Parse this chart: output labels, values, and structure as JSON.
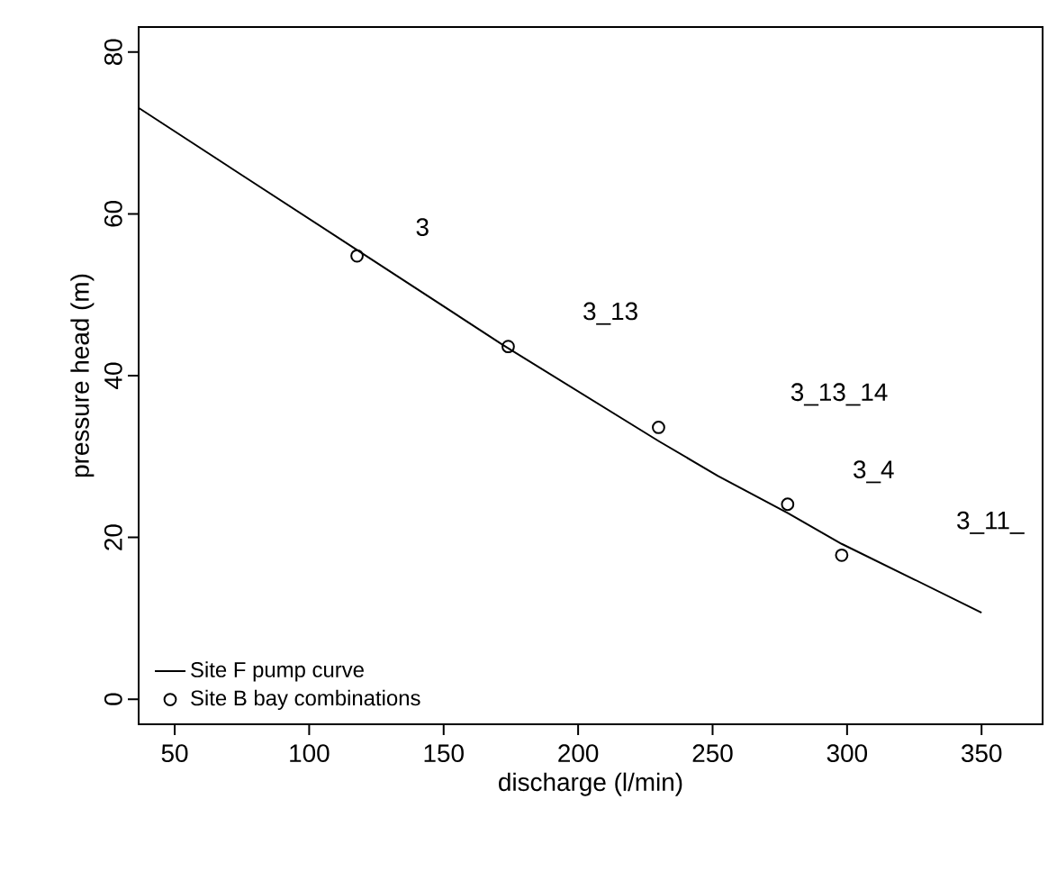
{
  "chart_data": {
    "type": "scatter",
    "xlabel": "discharge (l/min)",
    "ylabel": "pressure head (m)",
    "xlim": [
      36.6,
      372.7
    ],
    "ylim": [
      -3.1,
      83.1
    ],
    "xticks": [
      50,
      100,
      150,
      200,
      250,
      300,
      350
    ],
    "yticks": [
      0,
      20,
      40,
      60,
      80
    ],
    "legend": "bottom left",
    "series": [
      {
        "name": "Site F pump curve",
        "type": "line",
        "marker": "none",
        "color": "#000000",
        "x": [
          36.6,
          74,
          118,
          172,
          230,
          252,
          278,
          298,
          325,
          350
        ],
        "values": [
          73.1,
          65.0,
          55.5,
          43.8,
          31.9,
          27.6,
          23.0,
          19.2,
          14.8,
          10.7
        ]
      },
      {
        "name": "Site B bay combinations",
        "marker": "circle",
        "color": "#000000",
        "x": [
          117.8,
          174,
          229.9,
          277.9,
          298
        ],
        "values": [
          54.8,
          43.6,
          33.6,
          24.1,
          17.8
        ]
      }
    ],
    "annotations": [
      "3",
      "3_13",
      "3_13_14",
      "3_4",
      "3_11_"
    ]
  }
}
